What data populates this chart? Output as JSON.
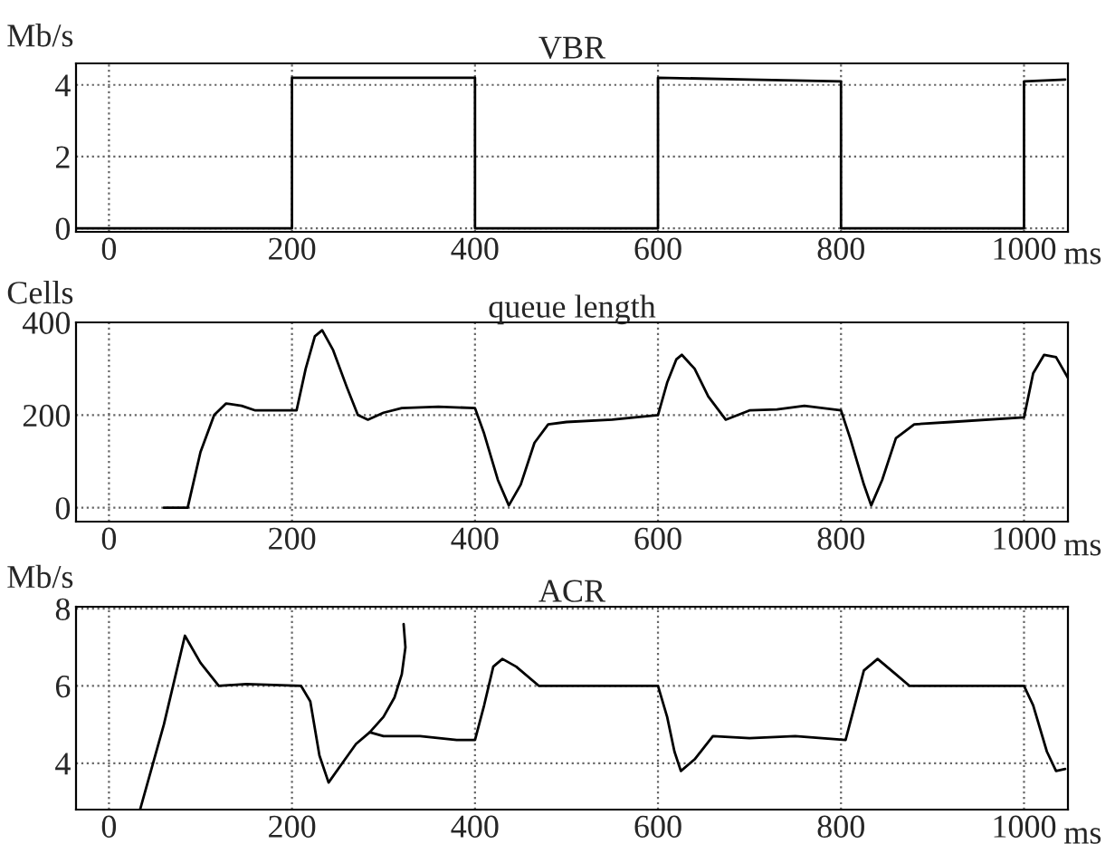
{
  "chart_data": [
    {
      "type": "line",
      "title": "VBR",
      "ylabel": "Mb/s",
      "xlabel": "ms",
      "xlim": [
        -36,
        1048
      ],
      "ylim": [
        -0.1,
        4.6
      ],
      "xticks": [
        0,
        200,
        400,
        600,
        800,
        1000
      ],
      "yticks": [
        0,
        2,
        4
      ],
      "grid": true,
      "series": [
        {
          "color": "#000000",
          "x": [
            -36,
            200,
            200,
            400,
            400,
            600,
            600,
            700,
            800,
            800,
            1000,
            1000,
            1045
          ],
          "values": [
            0,
            0,
            4.2,
            4.2,
            0,
            0,
            4.2,
            4.15,
            4.1,
            0,
            0,
            4.1,
            4.15
          ]
        }
      ]
    },
    {
      "type": "line",
      "title": "queue length",
      "ylabel": "Cells",
      "xlabel": "ms",
      "xlim": [
        -36,
        1048
      ],
      "ylim": [
        -30,
        400
      ],
      "xticks": [
        0,
        200,
        400,
        600,
        800,
        1000
      ],
      "yticks": [
        0,
        200,
        400
      ],
      "grid": true,
      "series": [
        {
          "color": "#000000",
          "x": [
            60,
            86,
            100,
            115,
            128,
            145,
            160,
            205,
            215,
            225,
            233,
            245,
            260,
            272,
            283,
            300,
            320,
            360,
            400,
            410,
            425,
            437,
            450,
            465,
            480,
            500,
            550,
            600,
            610,
            620,
            626,
            640,
            655,
            674,
            700,
            730,
            760,
            800,
            810,
            825,
            833,
            845,
            860,
            880,
            920,
            1000,
            1010,
            1022,
            1035,
            1048
          ],
          "values": [
            0,
            0,
            120,
            200,
            225,
            220,
            210,
            210,
            300,
            370,
            383,
            340,
            260,
            200,
            190,
            205,
            215,
            218,
            215,
            160,
            60,
            5,
            50,
            140,
            180,
            185,
            190,
            200,
            270,
            320,
            330,
            300,
            240,
            190,
            210,
            212,
            220,
            210,
            150,
            50,
            5,
            60,
            150,
            180,
            185,
            195,
            290,
            330,
            325,
            280
          ]
        }
      ]
    },
    {
      "type": "line",
      "title": "ACR",
      "ylabel": "Mb/s",
      "xlabel": "ms",
      "xlim": [
        -36,
        1048
      ],
      "ylim": [
        2.8,
        8.05
      ],
      "xticks": [
        0,
        200,
        400,
        600,
        800,
        1000
      ],
      "yticks": [
        4,
        6,
        8
      ],
      "grid": true,
      "series": [
        {
          "color": "#000000",
          "x": [
            34,
            60,
            83,
            100,
            120,
            150,
            210,
            220,
            230,
            240,
            255,
            270,
            285,
            300,
            340,
            380,
            400,
            410,
            420,
            430,
            445,
            470,
            600,
            610,
            618,
            625,
            640,
            660,
            700,
            750,
            805,
            815,
            825,
            840,
            860,
            875,
            1000,
            1010,
            1025,
            1035,
            1045
          ],
          "values": [
            2.8,
            5.0,
            7.3,
            6.6,
            6.0,
            6.05,
            6.0,
            5.6,
            4.2,
            3.5,
            4.0,
            4.5,
            4.8,
            4.7,
            4.7,
            4.6,
            4.6,
            5.5,
            6.5,
            6.7,
            6.5,
            6.0,
            6.0,
            5.2,
            4.3,
            3.8,
            4.1,
            4.7,
            4.65,
            4.7,
            4.6,
            5.5,
            6.4,
            6.7,
            6.3,
            6.0,
            6.0,
            5.5,
            4.3,
            3.8,
            3.85
          ]
        },
        {
          "color": "#000000",
          "x": [
            285,
            300,
            312,
            320,
            324,
            322
          ],
          "values": [
            4.8,
            5.2,
            5.7,
            6.3,
            7.0,
            7.6
          ]
        }
      ]
    }
  ]
}
